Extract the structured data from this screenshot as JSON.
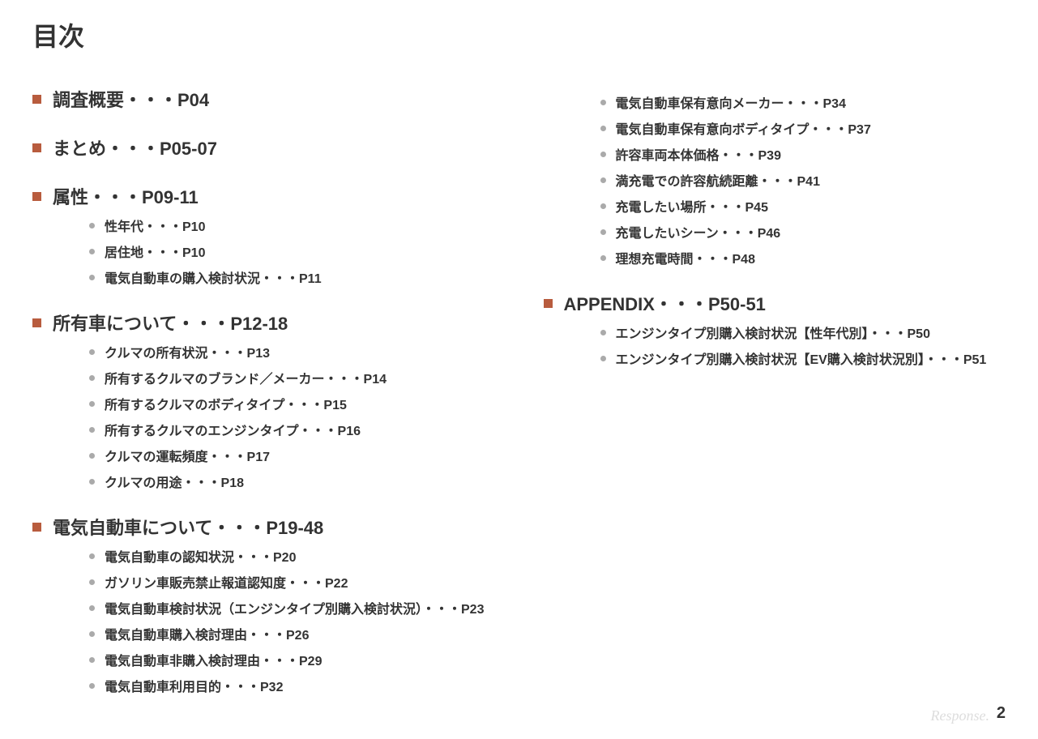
{
  "title": "目次",
  "page_number": "2",
  "watermark": "Response.",
  "colors": {
    "section_bullet": "#b85c3e",
    "sub_bullet": "#aaaaaa",
    "text": "#333333",
    "watermark": "#dddddd",
    "background": "#ffffff"
  },
  "typography": {
    "title_fontsize": 32,
    "section_fontsize": 22,
    "sub_fontsize": 16,
    "page_number_fontsize": 20
  },
  "left_sections": [
    {
      "title": "調査概要・・・P04",
      "subs": []
    },
    {
      "title": "まとめ・・・P05-07",
      "subs": []
    },
    {
      "title": "属性・・・P09-11",
      "subs": [
        "性年代・・・P10",
        "居住地・・・P10",
        "電気自動車の購入検討状況・・・P11"
      ]
    },
    {
      "title": "所有車について・・・P12-18",
      "subs": [
        "クルマの所有状況・・・P13",
        "所有するクルマのブランド／メーカー・・・P14",
        "所有するクルマのボディタイプ・・・P15",
        "所有するクルマのエンジンタイプ・・・P16",
        "クルマの運転頻度・・・P17",
        "クルマの用途・・・P18"
      ]
    },
    {
      "title": "電気自動車について・・・P19-48",
      "subs": [
        "電気自動車の認知状況・・・P20",
        "ガソリン車販売禁止報道認知度・・・P22",
        "電気自動車検討状況（エンジンタイプ別購入検討状況）・・・P23",
        "電気自動車購入検討理由・・・P26",
        "電気自動車非購入検討理由・・・P29",
        "電気自動車利用目的・・・P32"
      ]
    }
  ],
  "right_continuation_subs": [
    "電気自動車保有意向メーカー・・・P34",
    "電気自動車保有意向ボディタイプ・・・P37",
    "許容車両本体価格・・・P39",
    "満充電での許容航続距離・・・P41",
    "充電したい場所・・・P45",
    "充電したいシーン・・・P46",
    "理想充電時間・・・P48"
  ],
  "right_sections": [
    {
      "title": "APPENDIX・・・P50-51",
      "subs": [
        "エンジンタイプ別購入検討状況【性年代別】・・・P50",
        "エンジンタイプ別購入検討状況【EV購入検討状況別】・・・P51"
      ]
    }
  ]
}
